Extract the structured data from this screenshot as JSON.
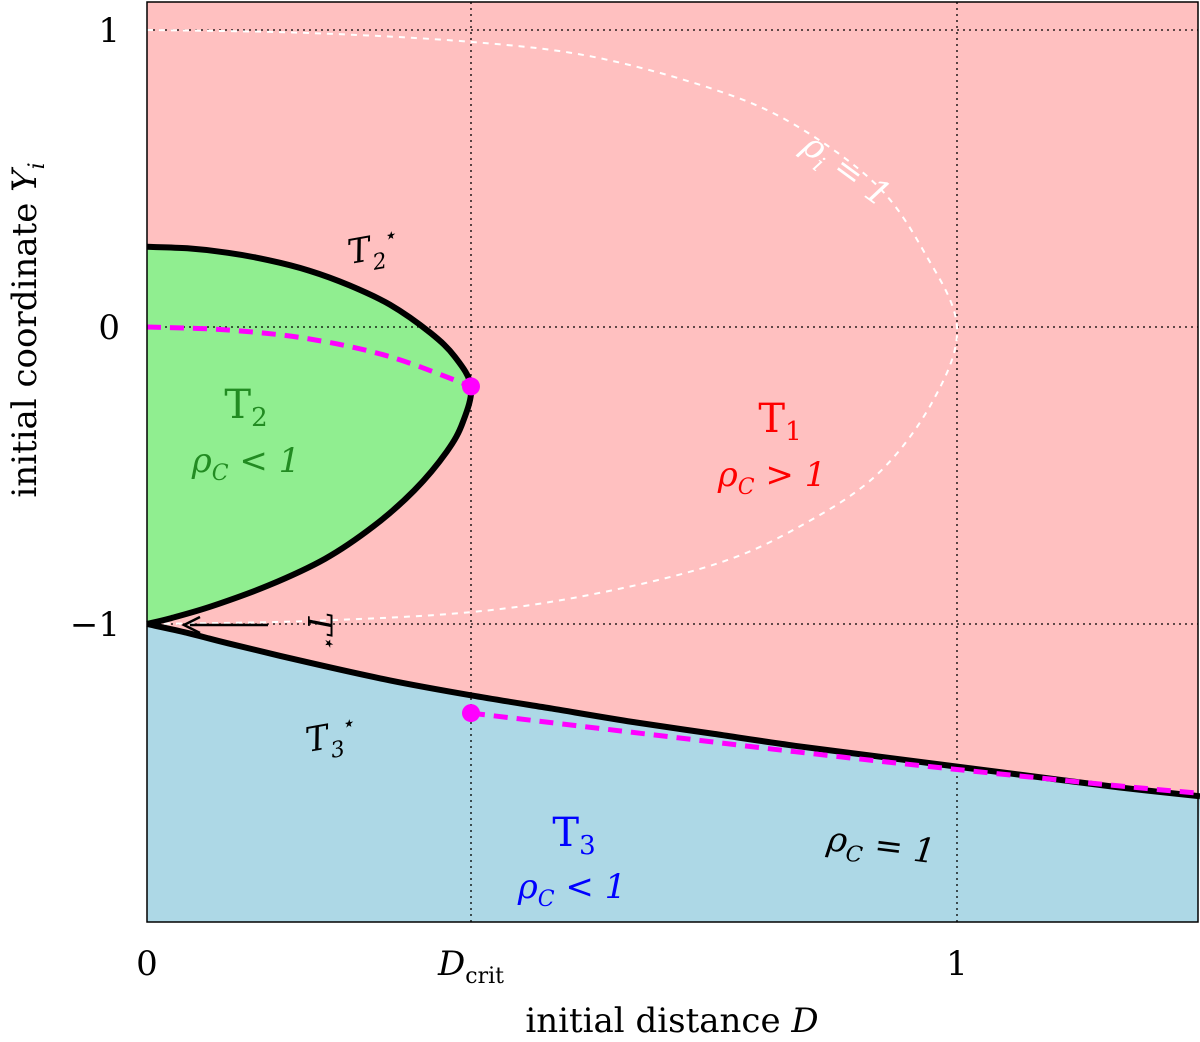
{
  "chart_data": {
    "type": "area",
    "title": "",
    "xlabel": "initial distance D",
    "ylabel": "initial coordinate Y_i",
    "xlim": [
      0,
      1.3
    ],
    "ylim": [
      -2.0,
      1.1
    ],
    "x_ticks": [
      {
        "value": 0,
        "label": "0"
      },
      {
        "value": 0.4,
        "label": "D_crit"
      },
      {
        "value": 1,
        "label": "1"
      }
    ],
    "y_ticks": [
      {
        "value": 1,
        "label": "1"
      },
      {
        "value": 0,
        "label": "0"
      },
      {
        "value": -1,
        "label": "−1"
      }
    ],
    "grid": true,
    "d_crit": 0.4,
    "regions": [
      {
        "name": "T1",
        "condition": "ρC > 1",
        "color": "#ffc0c0",
        "label_color": "#ff0000"
      },
      {
        "name": "T2",
        "condition": "ρC < 1",
        "color": "#90ee90",
        "label_color": "#228b22"
      },
      {
        "name": "T3",
        "condition": "ρC < 1",
        "color": "#add8e6",
        "label_color": "#0000ff"
      }
    ],
    "boundaries": {
      "T2_star": {
        "label": "T2*",
        "points": [
          [
            0,
            0.27
          ],
          [
            0.05,
            0.265
          ],
          [
            0.1,
            0.25
          ],
          [
            0.15,
            0.225
          ],
          [
            0.2,
            0.19
          ],
          [
            0.25,
            0.14
          ],
          [
            0.3,
            0.075
          ],
          [
            0.35,
            -0.02
          ],
          [
            0.38,
            -0.1
          ],
          [
            0.4,
            -0.2
          ],
          [
            0.39,
            -0.32
          ],
          [
            0.37,
            -0.42
          ],
          [
            0.33,
            -0.55
          ],
          [
            0.28,
            -0.67
          ],
          [
            0.22,
            -0.78
          ],
          [
            0.15,
            -0.87
          ],
          [
            0.08,
            -0.94
          ],
          [
            0.03,
            -0.98
          ],
          [
            0,
            -1.0
          ]
        ]
      },
      "T3_star": {
        "label": "T3*",
        "points": [
          [
            0,
            -1.0
          ],
          [
            0.05,
            -1.03
          ],
          [
            0.1,
            -1.065
          ],
          [
            0.2,
            -1.13
          ],
          [
            0.3,
            -1.19
          ],
          [
            0.4,
            -1.24
          ],
          [
            0.5,
            -1.285
          ],
          [
            0.6,
            -1.33
          ],
          [
            0.7,
            -1.37
          ],
          [
            0.8,
            -1.41
          ],
          [
            0.9,
            -1.445
          ],
          [
            1.0,
            -1.48
          ],
          [
            1.1,
            -1.515
          ],
          [
            1.2,
            -1.55
          ],
          [
            1.3,
            -1.58
          ]
        ]
      },
      "T_star_annotation": "T*"
    },
    "series": [
      {
        "name": "ρi = 1",
        "style": "white-dotted",
        "points": [
          [
            0,
            1.0
          ],
          [
            0.2,
            0.99
          ],
          [
            0.4,
            0.96
          ],
          [
            0.55,
            0.91
          ],
          [
            0.7,
            0.8
          ],
          [
            0.8,
            0.68
          ],
          [
            0.9,
            0.48
          ],
          [
            0.96,
            0.25
          ],
          [
            1.0,
            0.0
          ],
          [
            0.97,
            -0.25
          ],
          [
            0.9,
            -0.5
          ],
          [
            0.8,
            -0.68
          ],
          [
            0.7,
            -0.8
          ],
          [
            0.55,
            -0.9
          ],
          [
            0.4,
            -0.96
          ],
          [
            0.2,
            -0.99
          ],
          [
            0,
            -1.0
          ]
        ]
      },
      {
        "name": "ρC = 1",
        "style": "magenta-dashed",
        "segments": [
          [
            [
              0,
              0.0
            ],
            [
              0.1,
              -0.01
            ],
            [
              0.2,
              -0.04
            ],
            [
              0.3,
              -0.1
            ],
            [
              0.4,
              -0.2
            ]
          ],
          [
            [
              0.4,
              -1.3
            ],
            [
              0.6,
              -1.365
            ],
            [
              0.8,
              -1.43
            ],
            [
              1.0,
              -1.49
            ],
            [
              1.2,
              -1.545
            ],
            [
              1.3,
              -1.57
            ]
          ]
        ],
        "markers": [
          [
            0.4,
            -0.2
          ],
          [
            0.4,
            -1.3
          ]
        ]
      }
    ]
  },
  "colors": {
    "T1": "#ffc0c0",
    "T2": "#90ee90",
    "T3": "#add8e6",
    "magenta": "#ff00ff",
    "boundary": "#000000"
  }
}
